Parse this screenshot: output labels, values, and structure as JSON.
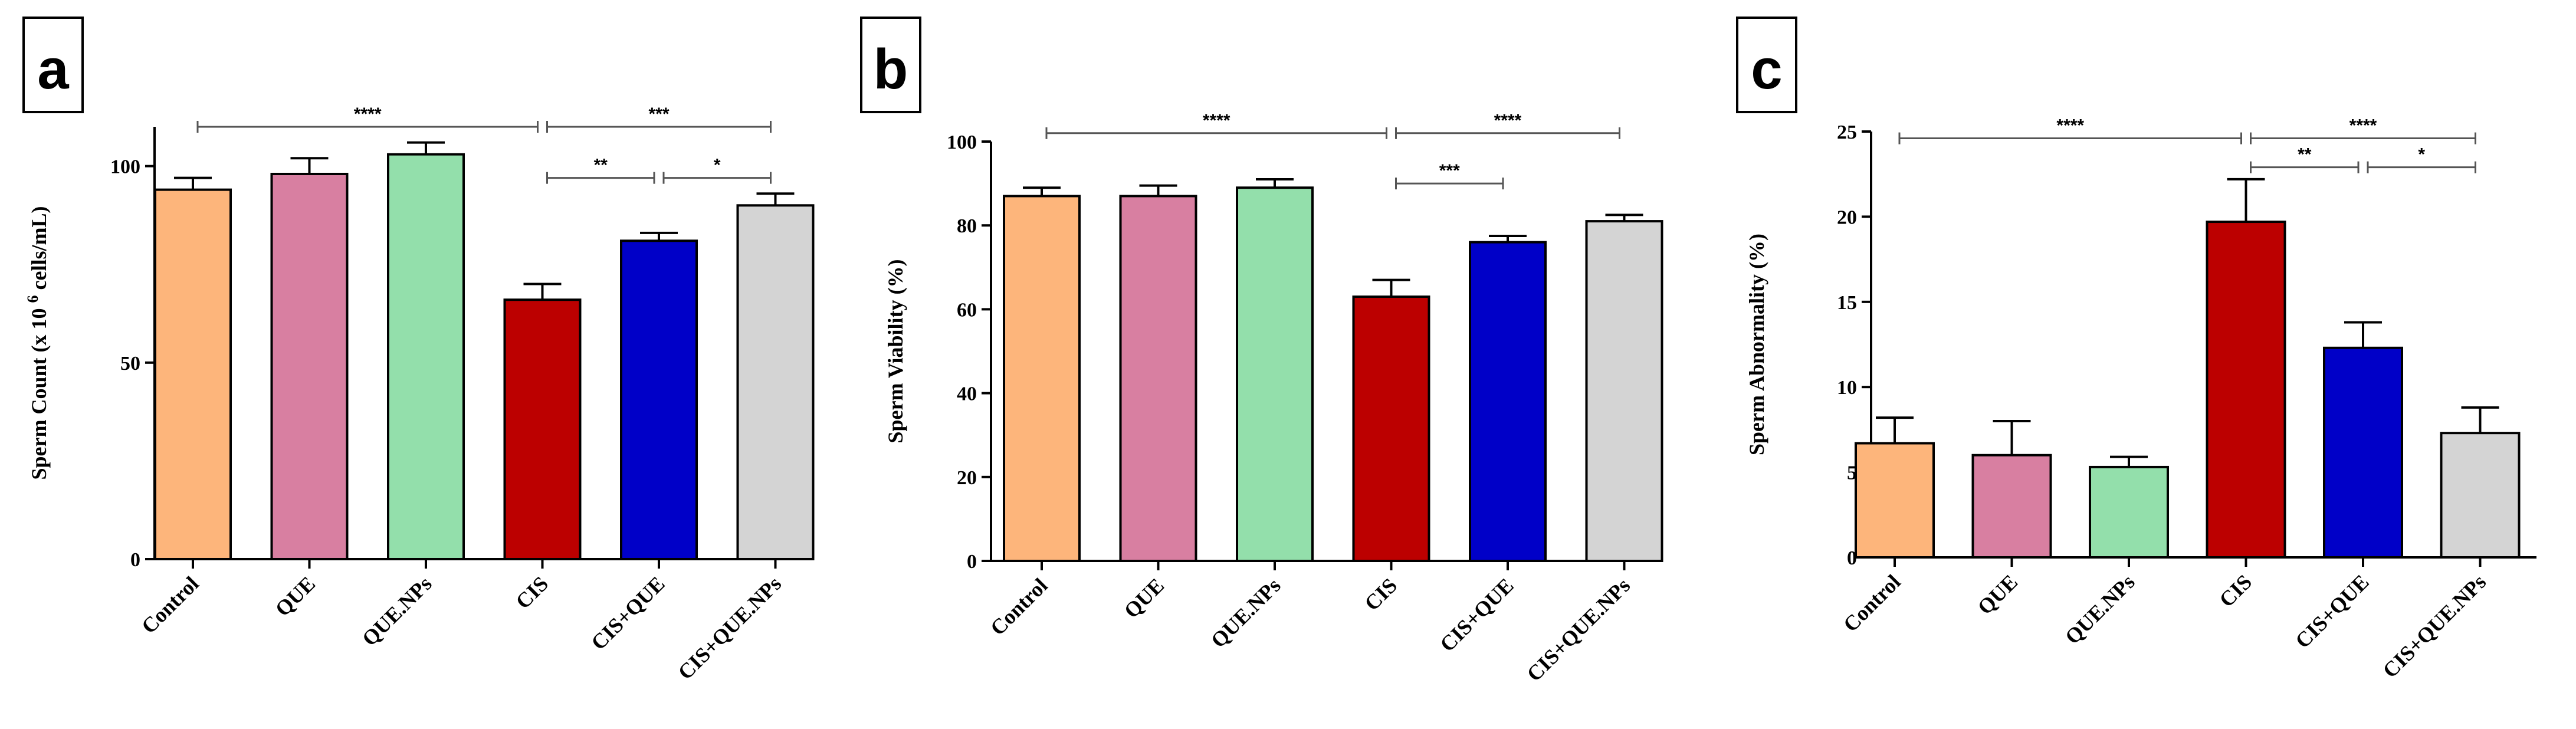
{
  "colors": {
    "Control": "#fdb57b",
    "QUE": "#d87fa1",
    "QUE.NPs": "#93dfab",
    "CIS": "#bc0000",
    "CIS+QUE": "#0000c8",
    "CIS+QUE.NPs": "#d4d4d4"
  },
  "chart_data": [
    {
      "type": "bar",
      "panel": "a",
      "categories": [
        "Control",
        "QUE",
        "QUE.NPs",
        "CIS",
        "CIS+QUE",
        "CIS+QUE.NPs"
      ],
      "values": [
        94,
        98,
        103,
        66,
        81,
        90
      ],
      "errors": [
        3,
        4,
        3,
        4,
        2,
        3
      ],
      "ylabel": "Sperm Count (x 10 6 cells/mL)",
      "ylabel_parts": {
        "pre": "Sperm Count (x 10 ",
        "sup": "6",
        "post": " cells/mL)"
      },
      "ylim": [
        0,
        110
      ],
      "yticks": [
        "0",
        "50",
        "100"
      ],
      "ytick_values": [
        0,
        50,
        100
      ],
      "significance": [
        {
          "from": 0,
          "to": 3,
          "label": "****",
          "y": 110
        },
        {
          "from": 3,
          "to": 5,
          "label": "***",
          "y": 110
        },
        {
          "from": 3,
          "to": 4,
          "label": "**",
          "y": 97
        },
        {
          "from": 4,
          "to": 5,
          "label": "*",
          "y": 97
        }
      ]
    },
    {
      "type": "bar",
      "panel": "b",
      "categories": [
        "Control",
        "QUE",
        "QUE.NPs",
        "CIS",
        "CIS+QUE",
        "CIS+QUE.NPs"
      ],
      "values": [
        87,
        87,
        89,
        63,
        76,
        81
      ],
      "errors": [
        2,
        2.5,
        2,
        4,
        1.5,
        1.5
      ],
      "ylabel": "Sperm Viability (%)",
      "ylim": [
        0,
        100
      ],
      "yticks": [
        "0",
        "20",
        "40",
        "60",
        "80",
        "100"
      ],
      "ytick_values": [
        0,
        20,
        40,
        60,
        80,
        100
      ],
      "significance": [
        {
          "from": 0,
          "to": 3,
          "label": "****",
          "y": 102
        },
        {
          "from": 3,
          "to": 5,
          "label": "****",
          "y": 102
        },
        {
          "from": 3,
          "to": 4,
          "label": "***",
          "y": 90
        }
      ]
    },
    {
      "type": "bar",
      "panel": "c",
      "categories": [
        "Control",
        "QUE",
        "QUE.NPs",
        "CIS",
        "CIS+QUE",
        "CIS+QUE.NPs"
      ],
      "values": [
        6.7,
        6.0,
        5.3,
        19.7,
        12.3,
        7.3
      ],
      "errors": [
        1.5,
        2.0,
        0.6,
        2.5,
        1.5,
        1.5
      ],
      "ylabel": "Sperm Abnormality (%)",
      "ylim": [
        0,
        25
      ],
      "yticks": [
        "0",
        "5",
        "10",
        "15",
        "20",
        "25"
      ],
      "ytick_values": [
        0,
        5,
        10,
        15,
        20,
        25
      ],
      "significance": [
        {
          "from": 0,
          "to": 3,
          "label": "****",
          "y": 24.6
        },
        {
          "from": 3,
          "to": 5,
          "label": "****",
          "y": 24.6
        },
        {
          "from": 3,
          "to": 4,
          "label": "**",
          "y": 22.9
        },
        {
          "from": 4,
          "to": 5,
          "label": "*",
          "y": 22.9
        }
      ]
    }
  ]
}
